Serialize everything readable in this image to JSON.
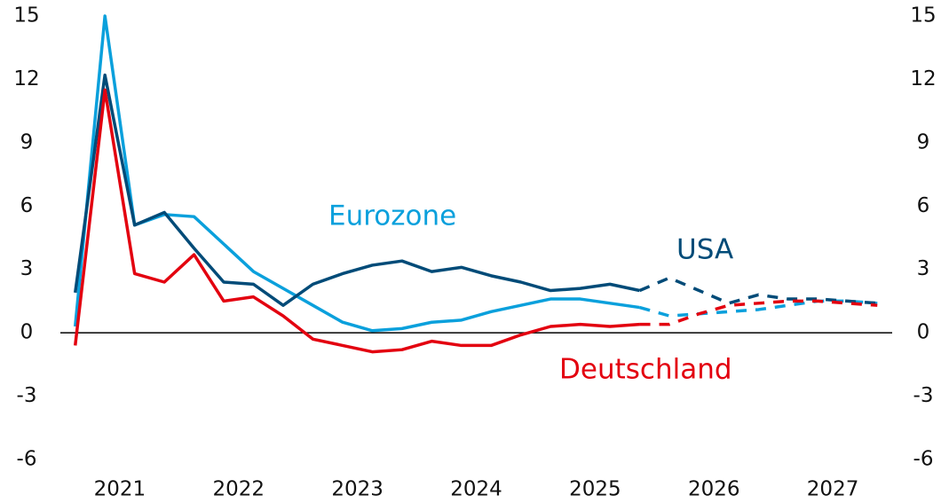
{
  "chart_data": {
    "type": "line",
    "x": [
      2021.125,
      2021.375,
      2021.625,
      2021.875,
      2022.125,
      2022.375,
      2022.625,
      2022.875,
      2023.125,
      2023.375,
      2023.625,
      2023.875,
      2024.125,
      2024.375,
      2024.625,
      2024.875,
      2025.125,
      2025.375,
      2025.625,
      2025.875,
      2026.125,
      2026.375,
      2026.625,
      2026.875,
      2027.125,
      2027.375,
      2027.625,
      2027.875
    ],
    "xlim": [
      2021,
      2028
    ],
    "xticks": [
      {
        "value": 2021.5,
        "label": "2021"
      },
      {
        "value": 2022.5,
        "label": "2022"
      },
      {
        "value": 2023.5,
        "label": "2023"
      },
      {
        "value": 2024.5,
        "label": "2024"
      },
      {
        "value": 2025.5,
        "label": "2025"
      },
      {
        "value": 2026.5,
        "label": "2026"
      },
      {
        "value": 2027.5,
        "label": "2027"
      }
    ],
    "ylim": [
      -6,
      15
    ],
    "yticks": [
      -6,
      -3,
      0,
      3,
      6,
      9,
      12,
      15
    ],
    "y2lim": [
      -6,
      15
    ],
    "y2ticks": [
      -6,
      -3,
      0,
      3,
      6,
      9,
      12,
      15
    ],
    "series": [
      {
        "name": "Eurozone",
        "color": "#0aa0dc",
        "values": [
          0.3,
          15.0,
          5.1,
          5.6,
          5.5,
          4.2,
          2.9,
          2.1,
          1.3,
          0.5,
          0.1,
          0.2,
          0.5,
          0.6,
          1.0,
          1.3,
          1.6,
          1.6,
          1.4,
          1.2,
          null,
          null,
          null,
          null,
          null,
          null,
          null,
          null
        ],
        "forecast": [
          null,
          null,
          null,
          null,
          null,
          null,
          null,
          null,
          null,
          null,
          null,
          null,
          null,
          null,
          null,
          null,
          null,
          null,
          null,
          1.2,
          0.8,
          0.9,
          1.0,
          1.1,
          1.3,
          1.5,
          1.5,
          1.4
        ]
      },
      {
        "name": "USA",
        "color": "#004b78",
        "values": [
          1.9,
          12.2,
          5.1,
          5.7,
          4.0,
          2.4,
          2.3,
          1.3,
          2.3,
          2.8,
          3.2,
          3.4,
          2.9,
          3.1,
          2.7,
          2.4,
          2.0,
          2.1,
          2.3,
          2.0,
          null,
          null,
          null,
          null,
          null,
          null,
          null,
          null
        ],
        "forecast": [
          null,
          null,
          null,
          null,
          null,
          null,
          null,
          null,
          null,
          null,
          null,
          null,
          null,
          null,
          null,
          null,
          null,
          null,
          null,
          2.0,
          2.6,
          2.0,
          1.4,
          1.8,
          1.6,
          1.6,
          1.5,
          1.4
        ]
      },
      {
        "name": "Deutschland",
        "color": "#e3000f",
        "values": [
          -0.6,
          11.5,
          2.8,
          2.4,
          3.7,
          1.5,
          1.7,
          0.8,
          -0.3,
          -0.6,
          -0.9,
          -0.8,
          -0.4,
          -0.6,
          -0.6,
          -0.1,
          0.3,
          0.4,
          0.3,
          0.4,
          null,
          null,
          null,
          null,
          null,
          null,
          null,
          null
        ],
        "forecast": [
          null,
          null,
          null,
          null,
          null,
          null,
          null,
          null,
          null,
          null,
          null,
          null,
          null,
          null,
          null,
          null,
          null,
          null,
          null,
          0.4,
          0.4,
          0.9,
          1.3,
          1.4,
          1.5,
          1.5,
          1.4,
          1.3
        ]
      }
    ]
  }
}
